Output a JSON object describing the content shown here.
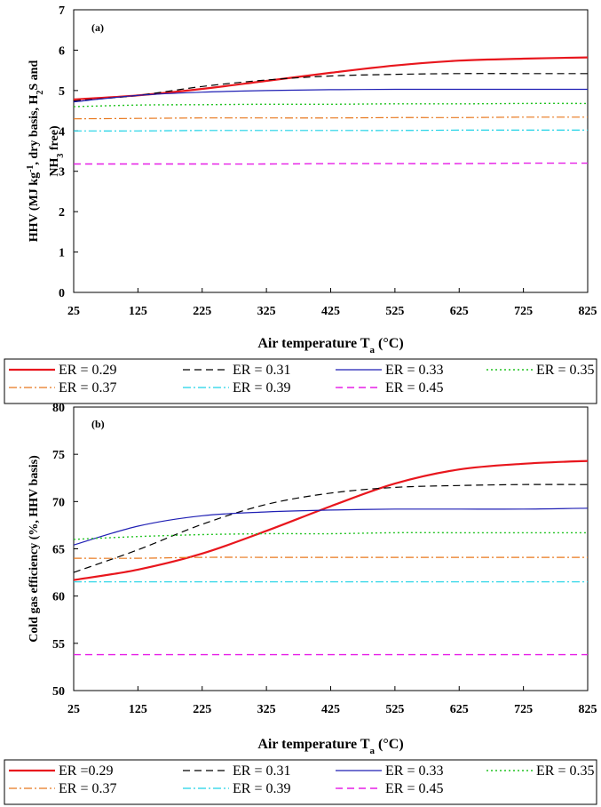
{
  "chart_data": [
    {
      "type": "line",
      "panel_label": "(a)",
      "xlabel_main": "Air temperature T",
      "xlabel_sub": "a",
      "xlabel_unit": " (°C)",
      "ylabel_lines": [
        [
          "HHV (MJ kg",
          "-1",
          ", dry basis, H",
          "2",
          "S and"
        ],
        [
          "NH",
          "3",
          " free)"
        ]
      ],
      "xlim": [
        25,
        825
      ],
      "ylim": [
        0,
        7
      ],
      "xticks": [
        "25",
        "125",
        "225",
        "325",
        "425",
        "525",
        "625",
        "725",
        "825"
      ],
      "yticks": [
        "0",
        "1",
        "2",
        "3",
        "4",
        "5",
        "6",
        "7"
      ],
      "grid": false,
      "legend_position": "below",
      "x": [
        25,
        125,
        225,
        325,
        425,
        525,
        625,
        725,
        825
      ],
      "series": [
        {
          "name": "ER = 0.29",
          "color": "#e8161d",
          "dash": "solid",
          "width": 2.2,
          "values": [
            4.78,
            4.88,
            5.04,
            5.24,
            5.44,
            5.62,
            5.74,
            5.79,
            5.82
          ]
        },
        {
          "name": "ER = 0.31",
          "color": "#000000",
          "dash": "dash",
          "width": 1.2,
          "values": [
            4.74,
            4.88,
            5.1,
            5.26,
            5.36,
            5.4,
            5.42,
            5.42,
            5.42
          ]
        },
        {
          "name": "ER = 0.33",
          "color": "#1f1fb4",
          "dash": "solid",
          "width": 1.2,
          "values": [
            4.72,
            4.88,
            4.96,
            5.0,
            5.02,
            5.03,
            5.03,
            5.03,
            5.03
          ]
        },
        {
          "name": "ER = 0.35",
          "color": "#22c322",
          "dash": "dot",
          "width": 1.4,
          "values": [
            4.6,
            4.64,
            4.65,
            4.66,
            4.66,
            4.67,
            4.67,
            4.68,
            4.68
          ]
        },
        {
          "name": "ER = 0.37",
          "color": "#e8781e",
          "dash": "dashdot",
          "width": 1.2,
          "values": [
            4.3,
            4.31,
            4.32,
            4.32,
            4.32,
            4.33,
            4.33,
            4.34,
            4.34
          ]
        },
        {
          "name": "ER = 0.39",
          "color": "#1ed2e6",
          "dash": "dashdot",
          "width": 1.2,
          "values": [
            4.0,
            4.0,
            4.01,
            4.01,
            4.01,
            4.01,
            4.02,
            4.02,
            4.02
          ]
        },
        {
          "name": "ER = 0.45",
          "color": "#e61ee6",
          "dash": "dash",
          "width": 1.4,
          "values": [
            3.18,
            3.18,
            3.18,
            3.18,
            3.19,
            3.19,
            3.19,
            3.2,
            3.2
          ]
        }
      ]
    },
    {
      "type": "line",
      "panel_label": "(b)",
      "xlabel_main": "Air temperature T",
      "xlabel_sub": "a",
      "xlabel_unit": " (°C)",
      "ylabel_lines": [
        [
          "Cold gas efficiency (%, HHV basis)"
        ]
      ],
      "xlim": [
        25,
        825
      ],
      "ylim": [
        50,
        80
      ],
      "xticks": [
        "25",
        "125",
        "225",
        "325",
        "425",
        "525",
        "625",
        "725",
        "825"
      ],
      "yticks": [
        "50",
        "55",
        "60",
        "65",
        "70",
        "75",
        "80"
      ],
      "grid": false,
      "legend_position": "below",
      "x": [
        25,
        125,
        225,
        325,
        425,
        525,
        625,
        725,
        825
      ],
      "series": [
        {
          "name": "ER =0.29",
          "color": "#e8161d",
          "dash": "solid",
          "width": 2.2,
          "values": [
            61.7,
            62.8,
            64.5,
            66.9,
            69.5,
            71.9,
            73.4,
            74.0,
            74.3
          ]
        },
        {
          "name": "ER = 0.31",
          "color": "#000000",
          "dash": "dash",
          "width": 1.2,
          "values": [
            62.5,
            64.9,
            67.6,
            69.7,
            70.9,
            71.5,
            71.7,
            71.8,
            71.8
          ]
        },
        {
          "name": "ER = 0.33",
          "color": "#1f1fb4",
          "dash": "solid",
          "width": 1.2,
          "values": [
            65.4,
            67.4,
            68.5,
            68.9,
            69.1,
            69.2,
            69.2,
            69.2,
            69.3
          ]
        },
        {
          "name": "ER = 0.35",
          "color": "#22c322",
          "dash": "dot",
          "width": 1.4,
          "values": [
            66.0,
            66.3,
            66.5,
            66.6,
            66.6,
            66.7,
            66.7,
            66.7,
            66.7
          ]
        },
        {
          "name": "ER = 0.37",
          "color": "#e8781e",
          "dash": "dashdot",
          "width": 1.2,
          "values": [
            64.0,
            64.0,
            64.1,
            64.1,
            64.1,
            64.1,
            64.1,
            64.1,
            64.1
          ]
        },
        {
          "name": "ER = 0.39",
          "color": "#1ed2e6",
          "dash": "dashdot",
          "width": 1.2,
          "values": [
            61.5,
            61.5,
            61.5,
            61.5,
            61.5,
            61.5,
            61.5,
            61.5,
            61.5
          ]
        },
        {
          "name": "ER = 0.45",
          "color": "#e61ee6",
          "dash": "dash",
          "width": 1.4,
          "values": [
            53.8,
            53.8,
            53.8,
            53.8,
            53.8,
            53.8,
            53.8,
            53.8,
            53.8
          ]
        }
      ]
    }
  ]
}
